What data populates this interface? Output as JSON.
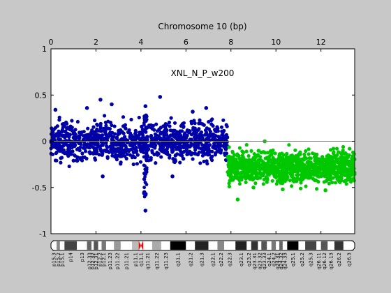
{
  "window": {
    "background": "#c8c8c8"
  },
  "chart_data": {
    "type": "scatter",
    "title": "Chromosome 10 (bp)",
    "annotation": "XNL_N_P_w200",
    "xlabel": "",
    "ylabel": "",
    "x_ticks": [
      "0",
      "2",
      "4",
      "6",
      "8",
      "10",
      "12"
    ],
    "y_ticks": [
      "1",
      "0.5",
      "0",
      "-0.5",
      "-1"
    ],
    "xlim": [
      0,
      13.5
    ],
    "ylim": [
      -1,
      1
    ],
    "grid": false,
    "baseline_y": 0,
    "series": [
      {
        "color": "#0000a8",
        "x_range": [
          0,
          7.85
        ],
        "y_mean": 0,
        "y_spread": [
          -0.3,
          0.3
        ],
        "outliers": [
          {
            "x": 2.2,
            "y": 0.45
          },
          {
            "x": 1.6,
            "y": 0.36
          },
          {
            "x": 2.7,
            "y": 0.4
          },
          {
            "x": 4.85,
            "y": 0.48
          },
          {
            "x": 4.2,
            "y": 0.38
          },
          {
            "x": 0.2,
            "y": 0.34
          },
          {
            "x": 4.2,
            "y": -0.75
          },
          {
            "x": 4.15,
            "y": -0.55
          },
          {
            "x": 2.3,
            "y": -0.38
          },
          {
            "x": 5.4,
            "y": -0.38
          },
          {
            "x": 6.3,
            "y": 0.32
          },
          {
            "x": 6.9,
            "y": 0.36
          }
        ]
      },
      {
        "color": "#00c800",
        "x_range": [
          7.85,
          13.5
        ],
        "y_mean": -0.28,
        "y_spread": [
          -0.55,
          -0.05
        ],
        "outliers": [
          {
            "x": 8.3,
            "y": -0.63
          },
          {
            "x": 9.5,
            "y": 0.0
          },
          {
            "x": 10.3,
            "y": -0.52
          },
          {
            "x": 12.2,
            "y": -0.53
          },
          {
            "x": 9.0,
            "y": -0.5
          }
        ]
      }
    ],
    "ideogram": {
      "bands": [
        {
          "label": "p15.3",
          "x0": 0.0,
          "x1": 0.25,
          "shade": "#ffffff"
        },
        {
          "label": "p15.2",
          "x0": 0.25,
          "x1": 0.4,
          "shade": "#888888"
        },
        {
          "label": "p15.1",
          "x0": 0.4,
          "x1": 0.6,
          "shade": "#ffffff"
        },
        {
          "label": "p14",
          "x0": 0.6,
          "x1": 1.15,
          "shade": "#444444"
        },
        {
          "label": "p13",
          "x0": 1.15,
          "x1": 1.6,
          "shade": "#ffffff"
        },
        {
          "label": "p12.33",
          "x0": 1.6,
          "x1": 1.8,
          "shade": "#666666"
        },
        {
          "label": "p12.32",
          "x0": 1.8,
          "x1": 1.9,
          "shade": "#ffffff"
        },
        {
          "label": "p12.31",
          "x0": 1.9,
          "x1": 2.1,
          "shade": "#555555"
        },
        {
          "label": "p12.2",
          "x0": 2.1,
          "x1": 2.25,
          "shade": "#ffffff"
        },
        {
          "label": "p12.1",
          "x0": 2.25,
          "x1": 2.45,
          "shade": "#777777"
        },
        {
          "label": "p11.23",
          "x0": 2.45,
          "x1": 2.8,
          "shade": "#ffffff"
        },
        {
          "label": "p11.22",
          "x0": 2.8,
          "x1": 3.1,
          "shade": "#999999"
        },
        {
          "label": "p11.21",
          "x0": 3.1,
          "x1": 3.6,
          "shade": "#ffffff"
        },
        {
          "label": "p11.1",
          "x0": 3.6,
          "x1": 3.9,
          "shade": "#bbbbbb"
        },
        {
          "label": "q11.1",
          "x0": 3.9,
          "x1": 4.1,
          "shade": "#ff0000",
          "centromere": true
        },
        {
          "label": "q11.21",
          "x0": 4.1,
          "x1": 4.5,
          "shade": "#ffffff"
        },
        {
          "label": "q11.22",
          "x0": 4.5,
          "x1": 4.9,
          "shade": "#aaaaaa"
        },
        {
          "label": "q11.23",
          "x0": 4.9,
          "x1": 5.3,
          "shade": "#ffffff"
        },
        {
          "label": "q21.1",
          "x0": 5.3,
          "x1": 6.0,
          "shade": "#000000"
        },
        {
          "label": "q21.2",
          "x0": 6.0,
          "x1": 6.4,
          "shade": "#ffffff"
        },
        {
          "label": "q21.3",
          "x0": 6.4,
          "x1": 7.0,
          "shade": "#222222"
        },
        {
          "label": "q22.1",
          "x0": 7.0,
          "x1": 7.4,
          "shade": "#ffffff"
        },
        {
          "label": "q22.2",
          "x0": 7.4,
          "x1": 7.7,
          "shade": "#888888"
        },
        {
          "label": "q22.3",
          "x0": 7.7,
          "x1": 8.2,
          "shade": "#ffffff"
        },
        {
          "label": "q23.1",
          "x0": 8.2,
          "x1": 8.7,
          "shade": "#222222"
        },
        {
          "label": "q23.2",
          "x0": 8.7,
          "x1": 8.9,
          "shade": "#ffffff"
        },
        {
          "label": "q23.31",
          "x0": 8.9,
          "x1": 9.2,
          "shade": "#333333"
        },
        {
          "label": "q23.32",
          "x0": 9.2,
          "x1": 9.35,
          "shade": "#ffffff"
        },
        {
          "label": "q23.33",
          "x0": 9.35,
          "x1": 9.6,
          "shade": "#555555"
        },
        {
          "label": "q24.1",
          "x0": 9.6,
          "x1": 9.8,
          "shade": "#ffffff"
        },
        {
          "label": "q24.2",
          "x0": 9.8,
          "x1": 10.0,
          "shade": "#777777"
        },
        {
          "label": "q24.31",
          "x0": 10.0,
          "x1": 10.15,
          "shade": "#ffffff"
        },
        {
          "label": "q24.32",
          "x0": 10.15,
          "x1": 10.3,
          "shade": "#666666"
        },
        {
          "label": "q24.33",
          "x0": 10.3,
          "x1": 10.5,
          "shade": "#ffffff"
        },
        {
          "label": "q25.1",
          "x0": 10.5,
          "x1": 11.0,
          "shade": "#000000"
        },
        {
          "label": "q25.2",
          "x0": 11.0,
          "x1": 11.3,
          "shade": "#ffffff"
        },
        {
          "label": "q25.3",
          "x0": 11.3,
          "x1": 11.8,
          "shade": "#444444"
        },
        {
          "label": "q26.11",
          "x0": 11.8,
          "x1": 12.0,
          "shade": "#ffffff"
        },
        {
          "label": "q26.12",
          "x0": 12.0,
          "x1": 12.3,
          "shade": "#555555"
        },
        {
          "label": "q26.13",
          "x0": 12.3,
          "x1": 12.6,
          "shade": "#ffffff"
        },
        {
          "label": "q26.2",
          "x0": 12.6,
          "x1": 13.0,
          "shade": "#333333"
        },
        {
          "label": "q26.3",
          "x0": 13.0,
          "x1": 13.5,
          "shade": "#ffffff"
        }
      ]
    }
  }
}
